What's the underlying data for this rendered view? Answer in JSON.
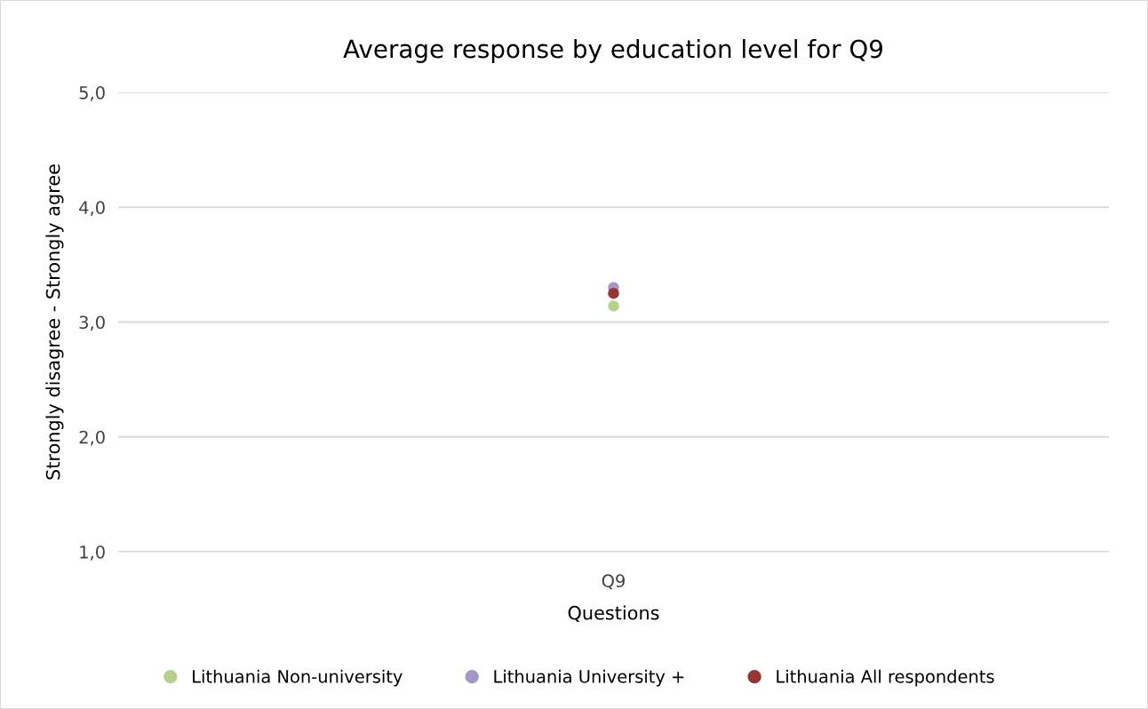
{
  "chart_data": {
    "type": "scatter",
    "title": "Average response by education level for Q9",
    "xlabel": "Questions",
    "ylabel": "Strongly disagree - Strongly agree",
    "categories": [
      "Q9"
    ],
    "series": [
      {
        "name": "Lithuania Non-university",
        "color": "#b5d18d",
        "values": [
          3.14
        ]
      },
      {
        "name": "Lithuania University +",
        "color": "#a598c6",
        "values": [
          3.3
        ]
      },
      {
        "name": "Lithuania All respondents",
        "color": "#953735",
        "values": [
          3.25
        ]
      }
    ],
    "ylim": [
      1,
      5
    ],
    "yticks": [
      {
        "value": 1,
        "label": "1,0"
      },
      {
        "value": 2,
        "label": "2,0"
      },
      {
        "value": 3,
        "label": "3,0"
      },
      {
        "value": 4,
        "label": "4,0"
      },
      {
        "value": 5,
        "label": "5,0"
      }
    ],
    "grid": "y",
    "legend": "bottom",
    "marker": "circle"
  }
}
